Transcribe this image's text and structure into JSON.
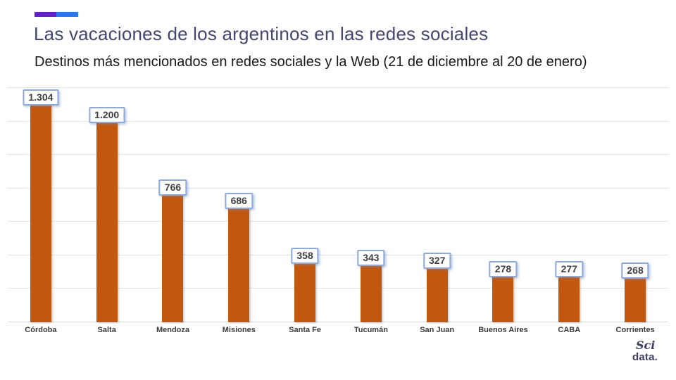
{
  "header": {
    "title": "Las vacaciones de los argentinos en las redes sociales",
    "subtitle": "Destinos más mencionados en redes sociales y la Web (21 de diciembre al 20 de enero)",
    "title_color": "#45466D",
    "accent_colors": {
      "purple": "#6421C9",
      "blue": "#2B77F7"
    }
  },
  "chart_data": {
    "type": "bar",
    "title": "Las vacaciones de los argentinos en las redes sociales",
    "subtitle": "Destinos más mencionados en redes sociales y la Web (21 de diciembre al 20 de enero)",
    "categories": [
      "Córdoba",
      "Salta",
      "Mendoza",
      "Misiones",
      "Santa Fe",
      "Tucumán",
      "San Juan",
      "Buenos Aires",
      "CABA",
      "Corrientes"
    ],
    "values": [
      1304,
      1200,
      766,
      686,
      358,
      343,
      327,
      278,
      277,
      268
    ],
    "value_labels": [
      "1.304",
      "1.200",
      "766",
      "686",
      "358",
      "343",
      "327",
      "278",
      "277",
      "268"
    ],
    "xlabel": "",
    "ylabel": "",
    "ylim": [
      0,
      1400
    ],
    "grid_step": 200,
    "grid": true,
    "legend": false,
    "yticks_visible": false,
    "bar_color": "#C2570F",
    "gridline_color": "#E2E2E2",
    "label_box": {
      "bg": "#FFFFFF",
      "border": "#8EA9DB",
      "text": "#3F3F3F"
    }
  },
  "footer": {
    "logo_line1": "Sci",
    "logo_line2": "data.",
    "logo_color": "#3E3E60"
  }
}
